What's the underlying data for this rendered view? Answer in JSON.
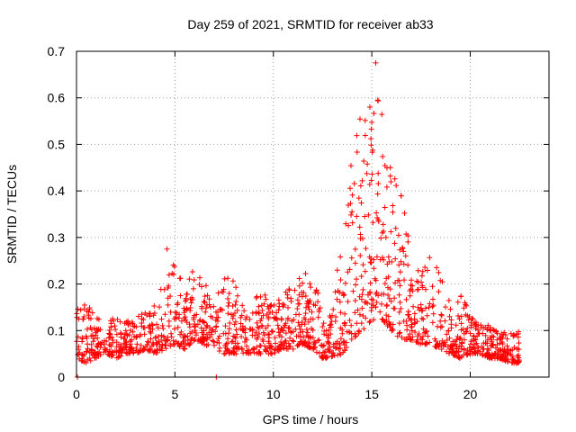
{
  "chart_data": {
    "type": "scatter",
    "title": "Day 259 of 2021, SRMTID for receiver ab33",
    "xlabel": "GPS time / hours",
    "ylabel": "SRMTID / TECUs",
    "xlim": [
      0,
      24
    ],
    "ylim": [
      0,
      0.7
    ],
    "xticks": [
      0,
      5,
      10,
      15,
      20
    ],
    "yticks": [
      0,
      0.1,
      0.2,
      0.3,
      0.4,
      0.5,
      0.6,
      0.7
    ],
    "xtick_labels": [
      "0",
      "5",
      "10",
      "15",
      "20"
    ],
    "ytick_labels": [
      "0",
      "0.1",
      "0.2",
      "0.3",
      "0.4",
      "0.5",
      "0.6",
      "0.7"
    ],
    "grid": true,
    "marker": "+",
    "series": [
      {
        "name": "SRMTID",
        "color": "#ff0000",
        "envelope": {
          "x": [
            0.0,
            0.5,
            1.0,
            1.5,
            2.0,
            2.5,
            3.0,
            3.5,
            4.0,
            4.5,
            5.0,
            5.5,
            6.0,
            6.5,
            7.0,
            7.5,
            8.0,
            8.5,
            9.0,
            9.5,
            10.0,
            10.5,
            11.0,
            11.5,
            12.0,
            12.5,
            13.0,
            13.5,
            14.0,
            14.5,
            15.0,
            15.3,
            15.6,
            16.0,
            16.5,
            17.0,
            17.5,
            18.0,
            18.5,
            19.0,
            19.5,
            20.0,
            20.5,
            21.0,
            21.5,
            22.0,
            22.5
          ],
          "low": [
            0.04,
            0.03,
            0.04,
            0.05,
            0.04,
            0.05,
            0.05,
            0.06,
            0.05,
            0.06,
            0.07,
            0.06,
            0.08,
            0.07,
            0.06,
            0.05,
            0.05,
            0.05,
            0.05,
            0.05,
            0.05,
            0.06,
            0.06,
            0.07,
            0.06,
            0.04,
            0.04,
            0.05,
            0.08,
            0.1,
            0.12,
            0.13,
            0.12,
            0.1,
            0.08,
            0.08,
            0.07,
            0.07,
            0.06,
            0.05,
            0.04,
            0.05,
            0.05,
            0.04,
            0.04,
            0.03,
            0.03
          ],
          "high": [
            0.15,
            0.16,
            0.13,
            0.12,
            0.13,
            0.12,
            0.13,
            0.14,
            0.16,
            0.22,
            0.26,
            0.2,
            0.24,
            0.21,
            0.15,
            0.23,
            0.21,
            0.16,
            0.17,
            0.18,
            0.16,
            0.18,
            0.2,
            0.22,
            0.25,
            0.12,
            0.14,
            0.34,
            0.47,
            0.58,
            0.62,
            0.67,
            0.52,
            0.46,
            0.4,
            0.26,
            0.23,
            0.27,
            0.22,
            0.16,
            0.19,
            0.14,
            0.12,
            0.11,
            0.1,
            0.1,
            0.1
          ]
        },
        "outliers": [
          {
            "x": 0.05,
            "y": 0.0
          },
          {
            "x": 7.1,
            "y": 0.0
          },
          {
            "x": 15.2,
            "y": 0.675
          },
          {
            "x": 14.9,
            "y": 0.58
          },
          {
            "x": 15.3,
            "y": 0.595
          },
          {
            "x": 4.6,
            "y": 0.275
          }
        ]
      }
    ]
  }
}
